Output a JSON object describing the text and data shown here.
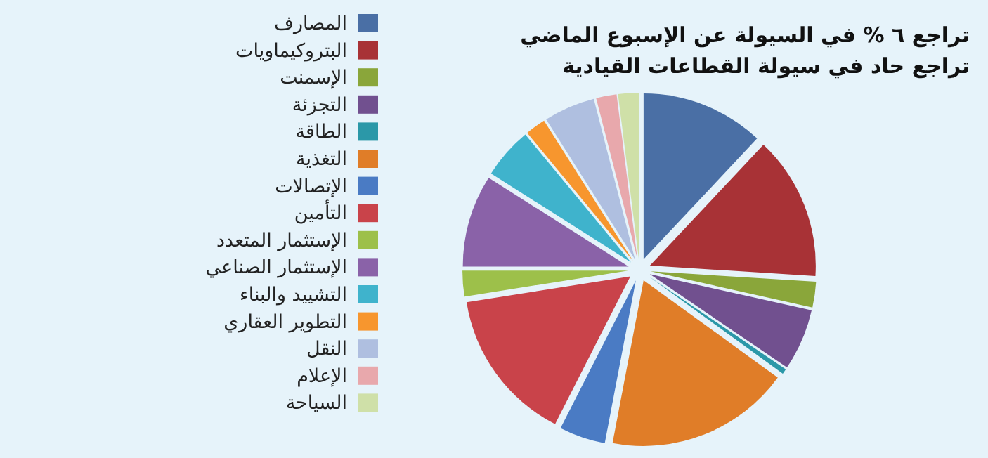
{
  "chart_data": {
    "type": "pie",
    "title": "تراجع ٦ % في السيولة عن الإسبوع الماضي",
    "subtitle": "تراجع حاد في سيولة القطاعات القيادية",
    "legend": "left",
    "categories": [
      "المصارف",
      "البتروكيماويات",
      "الإسمنت",
      "التجزئة",
      "الطاقة",
      "التغذية",
      "الإتصالات",
      "التأمين",
      "الإستثمار المتعدد",
      "الإستثمار الصناعي",
      "التشييد والبناء",
      "التطوير العقاري",
      "النقل",
      "الإعلام",
      "السياحة"
    ],
    "values": [
      12,
      14,
      2.5,
      6,
      0.5,
      18,
      4.5,
      15,
      2.5,
      9,
      5,
      2,
      5,
      2,
      2
    ],
    "colors": [
      "#4a6fa5",
      "#a83236",
      "#8aa63a",
      "#71508f",
      "#2b98a8",
      "#e07d28",
      "#4a7bc4",
      "#c9434a",
      "#9dc04a",
      "#8a62a8",
      "#3fb3cc",
      "#f7962e",
      "#afbfe0",
      "#e8a8ac",
      "#cfe0a8"
    ]
  }
}
